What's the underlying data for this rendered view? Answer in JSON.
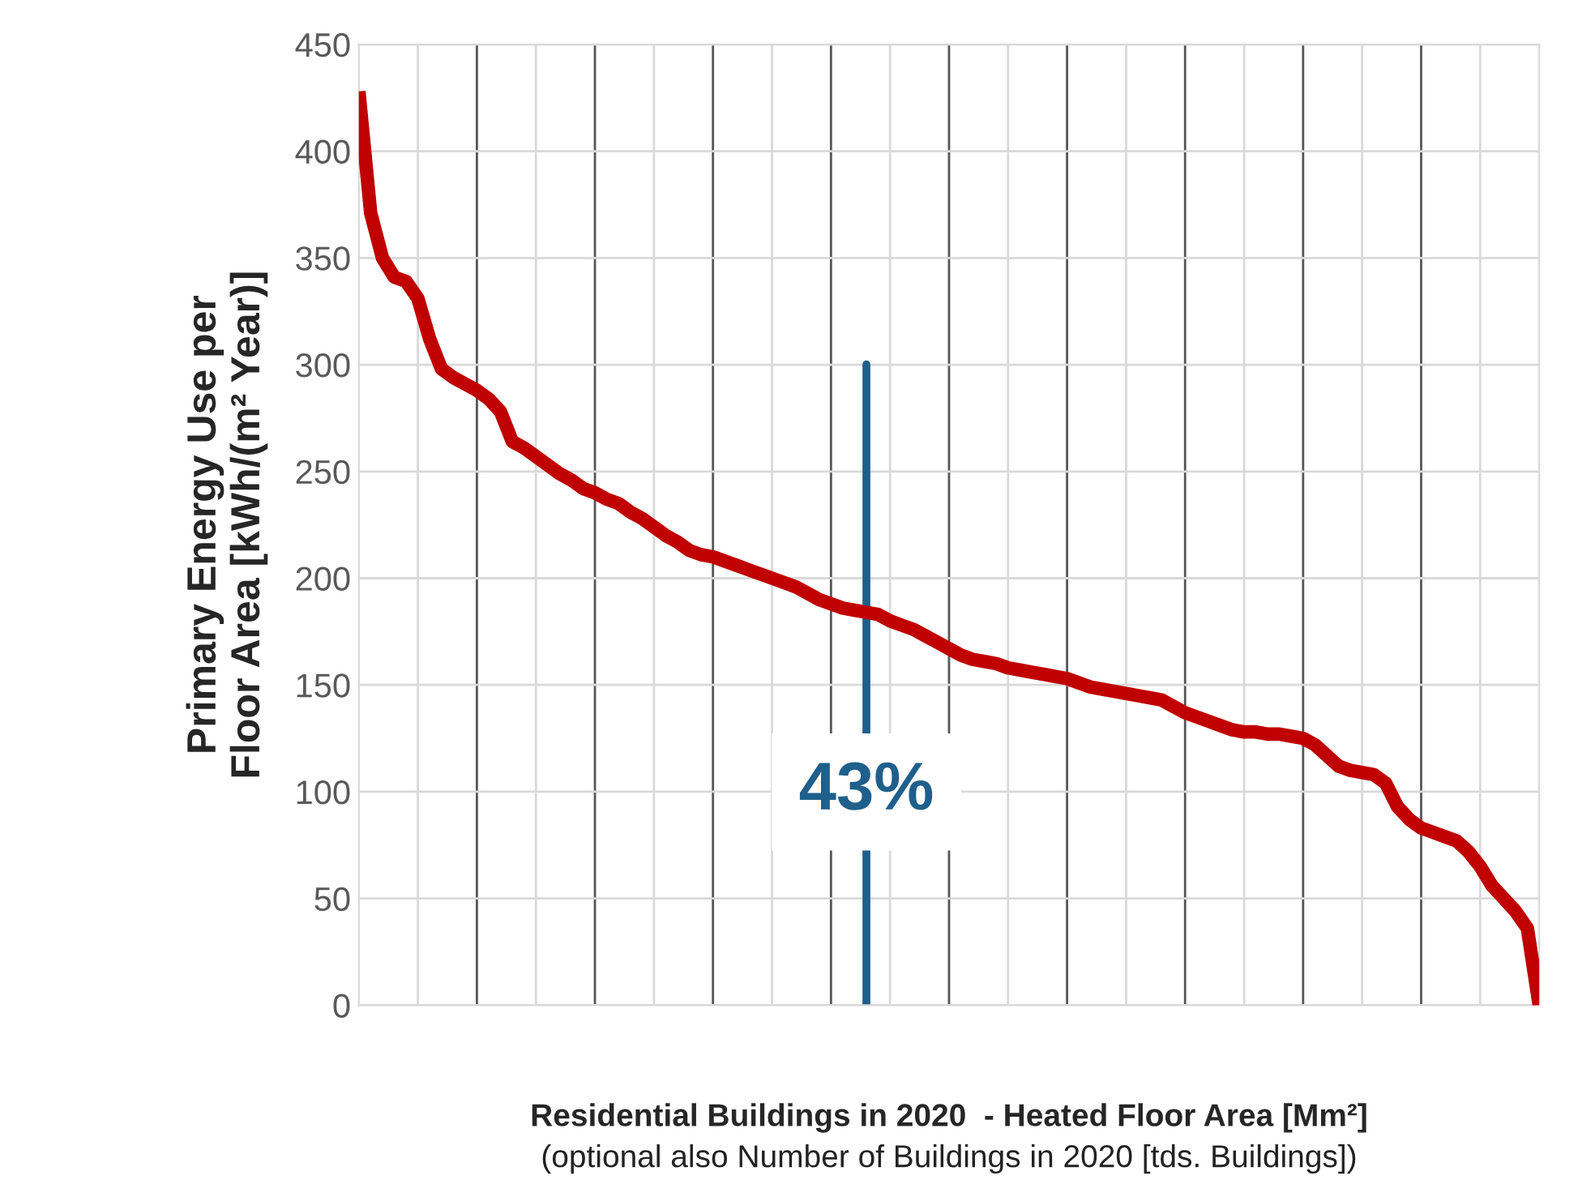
{
  "chart_data": {
    "type": "line",
    "xlabel": "Residential Buildings in 2020  - Heated Floor Area [Mm²]",
    "ylabel": "Primary Energy Use per\nFloor Area [kWh/(m² Year)]",
    "annotations": [
      "(optional also Number of Buildings in 2020 [tds. Buildings])",
      "43%"
    ],
    "categories": [
      null,
      null,
      null,
      null,
      null,
      null,
      null,
      null,
      null,
      null,
      null,
      null,
      null,
      null,
      null,
      null,
      null,
      null,
      null,
      null,
      null,
      null,
      null,
      null,
      null,
      null,
      null,
      null,
      null,
      null,
      null,
      null,
      null,
      null,
      null,
      null,
      null,
      null,
      null,
      null,
      null,
      null,
      null,
      null,
      null,
      null,
      null,
      null,
      null,
      null,
      null,
      null,
      null,
      null,
      null,
      null,
      null,
      null,
      null,
      null,
      null,
      null,
      null,
      null,
      null,
      null,
      null,
      null,
      null,
      null,
      null,
      null,
      null,
      null,
      null,
      null,
      null,
      null,
      null,
      null,
      null,
      null,
      null,
      null,
      null,
      null,
      null,
      null,
      null,
      null,
      null,
      null,
      null,
      null,
      null,
      null,
      null,
      null,
      null,
      null,
      null
    ],
    "series": [
      {
        "color": "#c00000",
        "values": [
          428,
          371,
          350,
          341,
          339,
          331,
          312,
          298,
          294,
          291,
          288,
          284,
          278,
          264,
          261,
          257,
          253,
          249,
          246,
          242,
          240,
          237,
          235,
          231,
          228,
          224,
          220,
          217,
          213,
          211,
          210,
          208,
          206,
          204,
          202,
          200,
          198,
          196,
          193,
          190,
          188,
          186,
          185,
          184,
          183,
          180,
          178,
          176,
          173,
          170,
          167,
          164,
          162,
          161,
          160,
          158,
          157,
          156,
          155,
          154,
          153,
          151,
          149,
          148,
          147,
          146,
          145,
          144,
          143,
          140,
          137,
          135,
          133,
          131,
          129,
          128,
          128,
          127,
          127,
          126,
          125,
          122,
          117,
          112,
          110,
          109,
          108,
          104,
          93,
          87,
          83,
          81,
          79,
          77,
          72,
          65,
          56,
          50,
          44,
          36,
          0
        ]
      }
    ],
    "ylim": [
      0,
      450
    ],
    "yticks": [
      0,
      50,
      100,
      150,
      200,
      250,
      300,
      350,
      400,
      450
    ],
    "grid": true
  }
}
